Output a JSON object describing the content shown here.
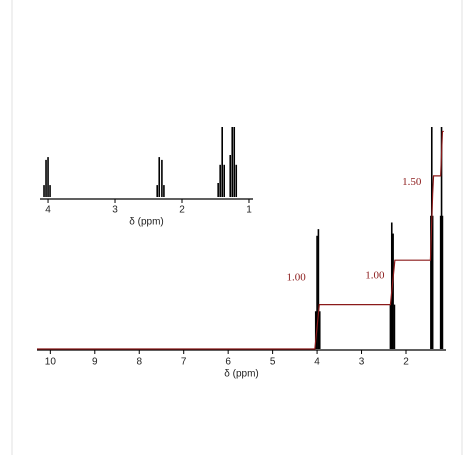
{
  "chart_data": [
    {
      "type": "spectrum",
      "xlabel": "δ (ppm)",
      "color": "#000000",
      "xlim": [
        4.12,
        0.94
      ],
      "xticks": [
        4,
        3,
        2,
        1
      ],
      "ylim": [
        0,
        100
      ],
      "x": [
        4.06,
        4.03,
        4.0,
        3.97,
        2.37,
        2.34,
        2.3,
        2.27,
        1.46,
        1.43,
        1.4,
        1.37,
        1.28,
        1.25,
        1.22,
        1.19
      ],
      "values": [
        17,
        53,
        57,
        17,
        17,
        57,
        53,
        17,
        20,
        46,
        100,
        46,
        60,
        100,
        100,
        46
      ]
    },
    {
      "type": "spectrum",
      "xlabel": "δ (ppm)",
      "color": "#000000",
      "xlim": [
        10.3,
        1.1
      ],
      "xticks": [
        10,
        9,
        8,
        7,
        6,
        5,
        4,
        3,
        2
      ],
      "ylim": [
        0,
        100
      ],
      "x": [
        4.03,
        4.0,
        3.97,
        3.94,
        2.35,
        2.32,
        2.29,
        2.26,
        1.44,
        1.42,
        1.4,
        1.22,
        1.2,
        1.18
      ],
      "values": [
        17,
        51,
        54,
        17,
        20,
        57,
        52,
        20,
        60,
        100,
        60,
        60,
        100,
        60
      ],
      "integration": {
        "color": "#8b1a1a",
        "x": [
          10.3,
          4.05,
          3.95,
          2.35,
          2.25,
          1.45,
          1.4,
          1.38,
          1.22,
          1.18,
          1.15
        ],
        "values": [
          0,
          0,
          20,
          20,
          40,
          40,
          70,
          78,
          78,
          98,
          98
        ]
      },
      "annotations": [
        {
          "text": "1.00",
          "x": 4.47,
          "y": 32
        },
        {
          "text": "1.00",
          "x": 2.7,
          "y": 33
        },
        {
          "text": "1.50",
          "x": 1.87,
          "y": 75
        }
      ]
    }
  ]
}
